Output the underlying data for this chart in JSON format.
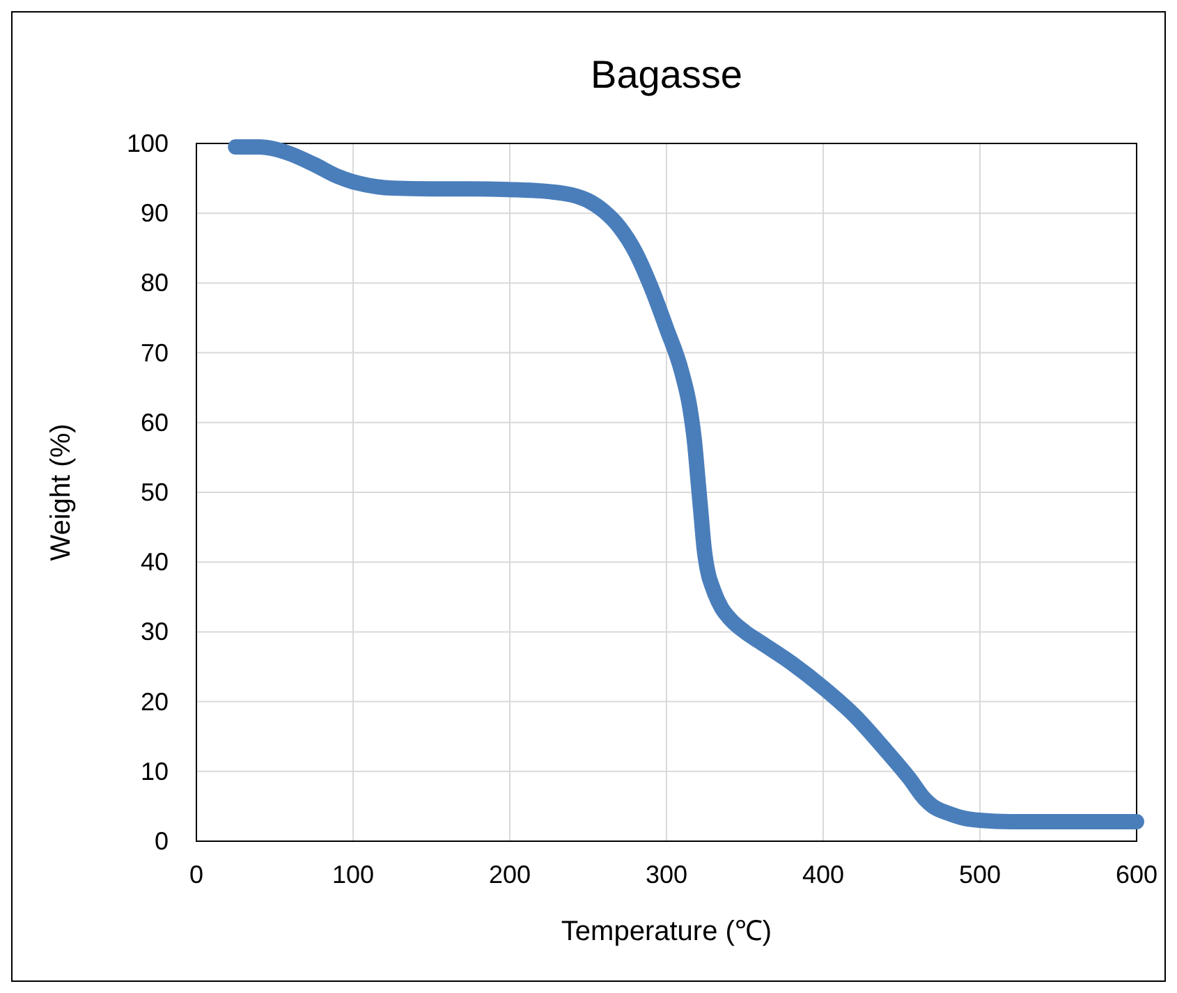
{
  "chart_data": {
    "type": "line",
    "title": "Bagasse",
    "xlabel": "Temperature (℃)",
    "ylabel": "Weight (%)",
    "x": [
      25,
      40,
      50,
      60,
      75,
      90,
      100,
      115,
      125,
      150,
      175,
      200,
      225,
      240,
      250,
      260,
      270,
      280,
      290,
      300,
      310,
      315,
      318,
      320,
      322,
      324,
      326,
      330,
      335,
      340,
      350,
      360,
      380,
      400,
      420,
      440,
      455,
      465,
      470,
      480,
      490,
      500,
      520,
      550,
      600
    ],
    "series": [
      {
        "color": "#4a7ebb",
        "values": [
          99.5,
          99.5,
          99.2,
          98.5,
          97,
          95.3,
          94.5,
          93.8,
          93.6,
          93.5,
          93.5,
          93.4,
          93.1,
          92.6,
          91.8,
          90.3,
          88,
          84.5,
          79.5,
          73.5,
          67,
          62,
          57,
          52,
          47,
          42,
          39,
          36,
          33.5,
          32,
          30,
          28.5,
          25.5,
          22,
          18,
          13,
          9,
          6,
          5,
          4,
          3.3,
          3,
          2.8,
          2.8,
          2.8
        ]
      }
    ],
    "xlim": [
      0,
      600
    ],
    "xticks": [
      0,
      100,
      200,
      300,
      400,
      500,
      600
    ],
    "ylim": [
      0,
      100
    ],
    "yticks": [
      0,
      10,
      20,
      30,
      40,
      50,
      60,
      70,
      80,
      90,
      100
    ],
    "grid": true,
    "line_style": "solid"
  }
}
